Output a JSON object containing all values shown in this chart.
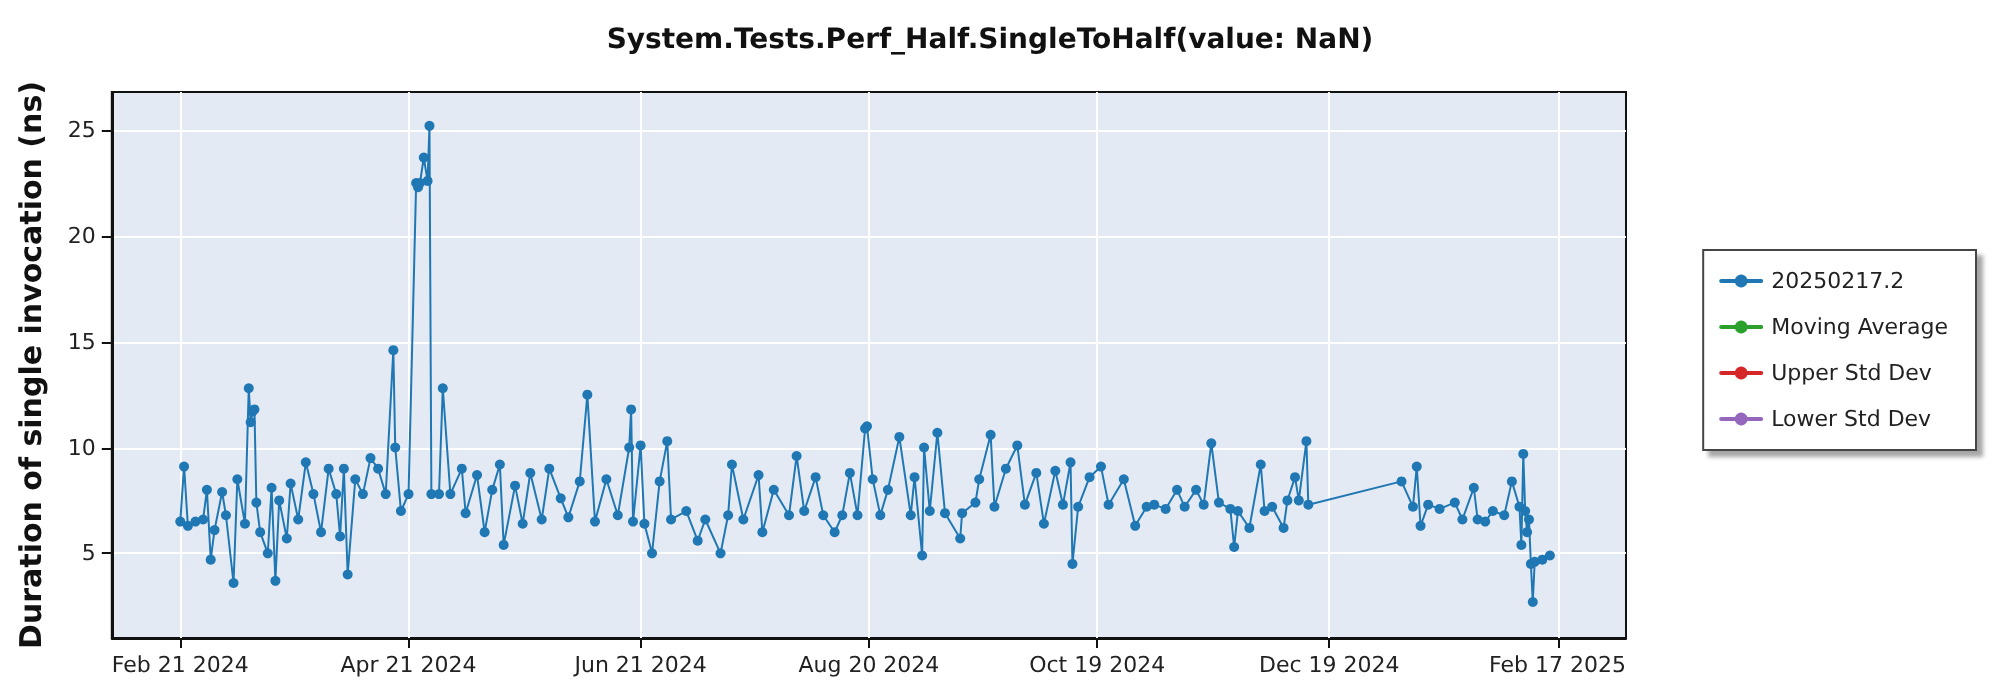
{
  "chart_data": {
    "type": "line",
    "title": "System.Tests.Perf_Half.SingleToHalf(value: NaN)",
    "ylabel": "Duration of single invocation (ns)",
    "xlim": [
      "2024-02-03",
      "2025-03-07"
    ],
    "xticks": [
      {
        "value": "2024-02-21",
        "label": "Feb 21 2024"
      },
      {
        "value": "2024-04-21",
        "label": "Apr 21 2024"
      },
      {
        "value": "2024-06-21",
        "label": "Jun 21 2024"
      },
      {
        "value": "2024-08-20",
        "label": "Aug 20 2024"
      },
      {
        "value": "2024-10-19",
        "label": "Oct 19 2024"
      },
      {
        "value": "2024-12-19",
        "label": "Dec 19 2024"
      },
      {
        "value": "2025-02-17",
        "label": "Feb 17 2025"
      }
    ],
    "ylim": [
      1,
      26.8
    ],
    "yticks": [
      5,
      10,
      15,
      20,
      25
    ],
    "grid": true,
    "legend": "right",
    "marker": "circle",
    "line_style": "solid",
    "series": [
      {
        "name": "20250217.2",
        "color": "#1f77b4",
        "x": [
          "2024-02-21",
          "2024-02-22",
          "2024-02-23",
          "2024-02-25",
          "2024-02-27",
          "2024-02-28",
          "2024-02-29",
          "2024-03-01",
          "2024-03-03",
          "2024-03-04",
          "2024-03-06",
          "2024-03-07",
          "2024-03-09",
          "2024-03-10",
          "2024-03-10T12:00",
          "2024-03-11",
          "2024-03-11T12:00",
          "2024-03-12",
          "2024-03-13",
          "2024-03-15",
          "2024-03-16",
          "2024-03-17",
          "2024-03-18",
          "2024-03-20",
          "2024-03-21",
          "2024-03-23",
          "2024-03-25",
          "2024-03-27",
          "2024-03-29",
          "2024-03-31",
          "2024-04-02",
          "2024-04-03",
          "2024-04-04",
          "2024-04-05",
          "2024-04-07",
          "2024-04-09",
          "2024-04-11",
          "2024-04-13",
          "2024-04-15",
          "2024-04-17",
          "2024-04-17T12:00",
          "2024-04-19",
          "2024-04-21",
          "2024-04-23",
          "2024-04-23T12:00",
          "2024-04-24",
          "2024-04-25",
          "2024-04-26",
          "2024-04-26T12:00",
          "2024-04-27",
          "2024-04-29",
          "2024-04-30",
          "2024-05-02",
          "2024-05-05",
          "2024-05-06",
          "2024-05-09",
          "2024-05-11",
          "2024-05-13",
          "2024-05-15",
          "2024-05-16",
          "2024-05-19",
          "2024-05-21",
          "2024-05-23",
          "2024-05-26",
          "2024-05-28",
          "2024-05-31",
          "2024-06-02",
          "2024-06-05",
          "2024-06-07",
          "2024-06-09",
          "2024-06-12",
          "2024-06-15",
          "2024-06-18",
          "2024-06-18T12:00",
          "2024-06-19",
          "2024-06-21",
          "2024-06-22",
          "2024-06-24",
          "2024-06-26",
          "2024-06-28",
          "2024-06-29",
          "2024-07-03",
          "2024-07-06",
          "2024-07-08",
          "2024-07-12",
          "2024-07-14",
          "2024-07-15",
          "2024-07-18",
          "2024-07-22",
          "2024-07-23",
          "2024-07-26",
          "2024-07-30",
          "2024-08-01",
          "2024-08-03",
          "2024-08-06",
          "2024-08-08",
          "2024-08-11",
          "2024-08-13",
          "2024-08-15",
          "2024-08-17",
          "2024-08-19",
          "2024-08-19T12:00",
          "2024-08-21",
          "2024-08-23",
          "2024-08-25",
          "2024-08-28",
          "2024-08-31",
          "2024-09-01",
          "2024-09-03",
          "2024-09-03T12:00",
          "2024-09-05",
          "2024-09-07",
          "2024-09-09",
          "2024-09-13",
          "2024-09-13T12:00",
          "2024-09-17",
          "2024-09-18",
          "2024-09-21",
          "2024-09-22",
          "2024-09-25",
          "2024-09-28",
          "2024-09-30",
          "2024-10-03",
          "2024-10-05",
          "2024-10-08",
          "2024-10-10",
          "2024-10-12",
          "2024-10-12T12:00",
          "2024-10-14",
          "2024-10-17",
          "2024-10-20",
          "2024-10-22",
          "2024-10-26",
          "2024-10-29",
          "2024-11-01",
          "2024-11-03",
          "2024-11-06",
          "2024-11-09",
          "2024-11-11",
          "2024-11-14",
          "2024-11-16",
          "2024-11-18",
          "2024-11-20",
          "2024-11-23",
          "2024-11-24",
          "2024-11-25",
          "2024-11-28",
          "2024-12-01",
          "2024-12-02",
          "2024-12-04",
          "2024-12-07",
          "2024-12-08",
          "2024-12-10",
          "2024-12-11",
          "2024-12-13",
          "2024-12-13T12:00",
          "2025-01-07",
          "2025-01-10",
          "2025-01-11",
          "2025-01-12",
          "2025-01-14",
          "2025-01-17",
          "2025-01-21",
          "2025-01-23",
          "2025-01-26",
          "2025-01-27",
          "2025-01-29",
          "2025-01-31",
          "2025-02-03",
          "2025-02-05",
          "2025-02-07",
          "2025-02-07T12:00",
          "2025-02-08",
          "2025-02-08T12:00",
          "2025-02-09",
          "2025-02-09T12:00",
          "2025-02-10",
          "2025-02-10T12:00",
          "2025-02-11",
          "2025-02-13",
          "2025-02-15"
        ],
        "values": [
          6.5,
          9.1,
          6.3,
          6.5,
          6.6,
          8.0,
          4.7,
          6.1,
          7.9,
          6.8,
          3.6,
          8.5,
          6.4,
          12.8,
          11.2,
          11.7,
          11.8,
          7.4,
          6.0,
          5.0,
          8.1,
          3.7,
          7.5,
          5.7,
          8.3,
          6.6,
          9.3,
          7.8,
          6.0,
          9.0,
          7.8,
          5.8,
          9.0,
          4.0,
          8.5,
          7.8,
          9.5,
          9.0,
          7.8,
          14.6,
          10.0,
          7.0,
          7.8,
          22.5,
          22.3,
          22.5,
          23.7,
          22.6,
          25.2,
          7.8,
          7.8,
          12.8,
          7.8,
          9.0,
          6.9,
          8.7,
          6.0,
          8.0,
          9.2,
          5.4,
          8.2,
          6.4,
          8.8,
          6.6,
          9.0,
          7.6,
          6.7,
          8.4,
          12.5,
          6.5,
          8.5,
          6.8,
          10.0,
          11.8,
          6.5,
          10.1,
          6.4,
          5.0,
          8.4,
          10.3,
          6.6,
          7.0,
          5.6,
          6.6,
          5.0,
          6.8,
          9.2,
          6.6,
          8.7,
          6.0,
          8.0,
          6.8,
          9.6,
          7.0,
          8.6,
          6.8,
          6.0,
          6.8,
          8.8,
          6.8,
          10.9,
          11.0,
          8.5,
          6.8,
          8.0,
          10.5,
          6.8,
          8.6,
          4.9,
          10.0,
          7.0,
          10.7,
          6.9,
          5.7,
          6.9,
          7.4,
          8.5,
          10.6,
          7.2,
          9.0,
          10.1,
          7.3,
          8.8,
          6.4,
          8.9,
          7.3,
          9.3,
          4.5,
          7.2,
          8.6,
          9.1,
          7.3,
          8.5,
          6.3,
          7.2,
          7.3,
          7.1,
          8.0,
          7.2,
          8.0,
          7.3,
          10.2,
          7.4,
          7.1,
          5.3,
          7.0,
          6.2,
          9.2,
          7.0,
          7.2,
          6.2,
          7.5,
          8.6,
          7.5,
          10.3,
          7.3,
          8.4,
          7.2,
          9.1,
          6.3,
          7.3,
          7.1,
          7.4,
          6.6,
          8.1,
          6.6,
          6.5,
          7.0,
          6.8,
          8.4,
          7.2,
          5.4,
          9.7,
          7.0,
          6.0,
          6.6,
          4.5,
          2.7,
          4.6,
          4.7,
          4.9
        ]
      },
      {
        "name": "Moving Average",
        "color": "#2ca02c"
      },
      {
        "name": "Upper Std Dev",
        "color": "#d62728"
      },
      {
        "name": "Lower Std Dev",
        "color": "#9467bd"
      }
    ]
  }
}
